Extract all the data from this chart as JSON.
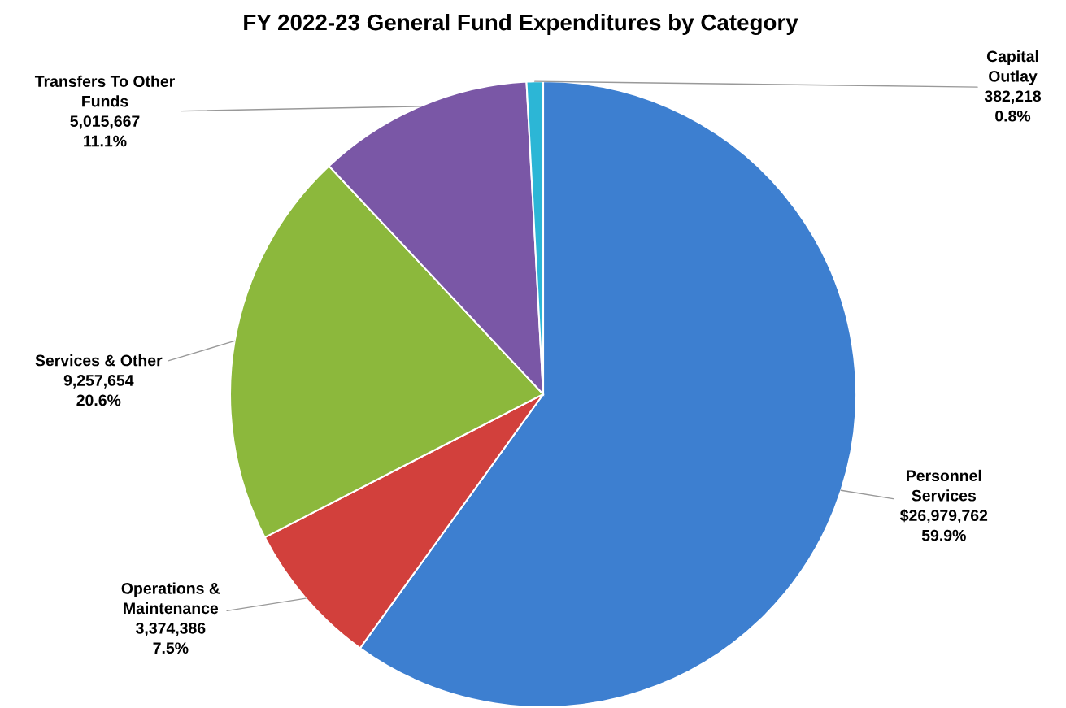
{
  "chart_data": {
    "type": "pie",
    "title": "FY 2022-23 General Fund Expenditures by Category",
    "categories": [
      "Personnel\nServices",
      "Operations &\nMaintenance",
      "Services & Other",
      "Transfers To Other\nFunds",
      "Capital\nOutlay"
    ],
    "values": [
      26979762,
      3374386,
      9257654,
      5015667,
      382218
    ],
    "value_labels": [
      "$26,979,762\n59.9%",
      "3,374,386\n7.5%",
      "9,257,654\n20.6%",
      "5,015,667\n11.1%",
      "382,218\n0.8%"
    ],
    "colors": [
      "#3d7fd0",
      "#d2403c",
      "#8cb83c",
      "#7a57a6",
      "#2cb6d6"
    ],
    "legend": false
  }
}
